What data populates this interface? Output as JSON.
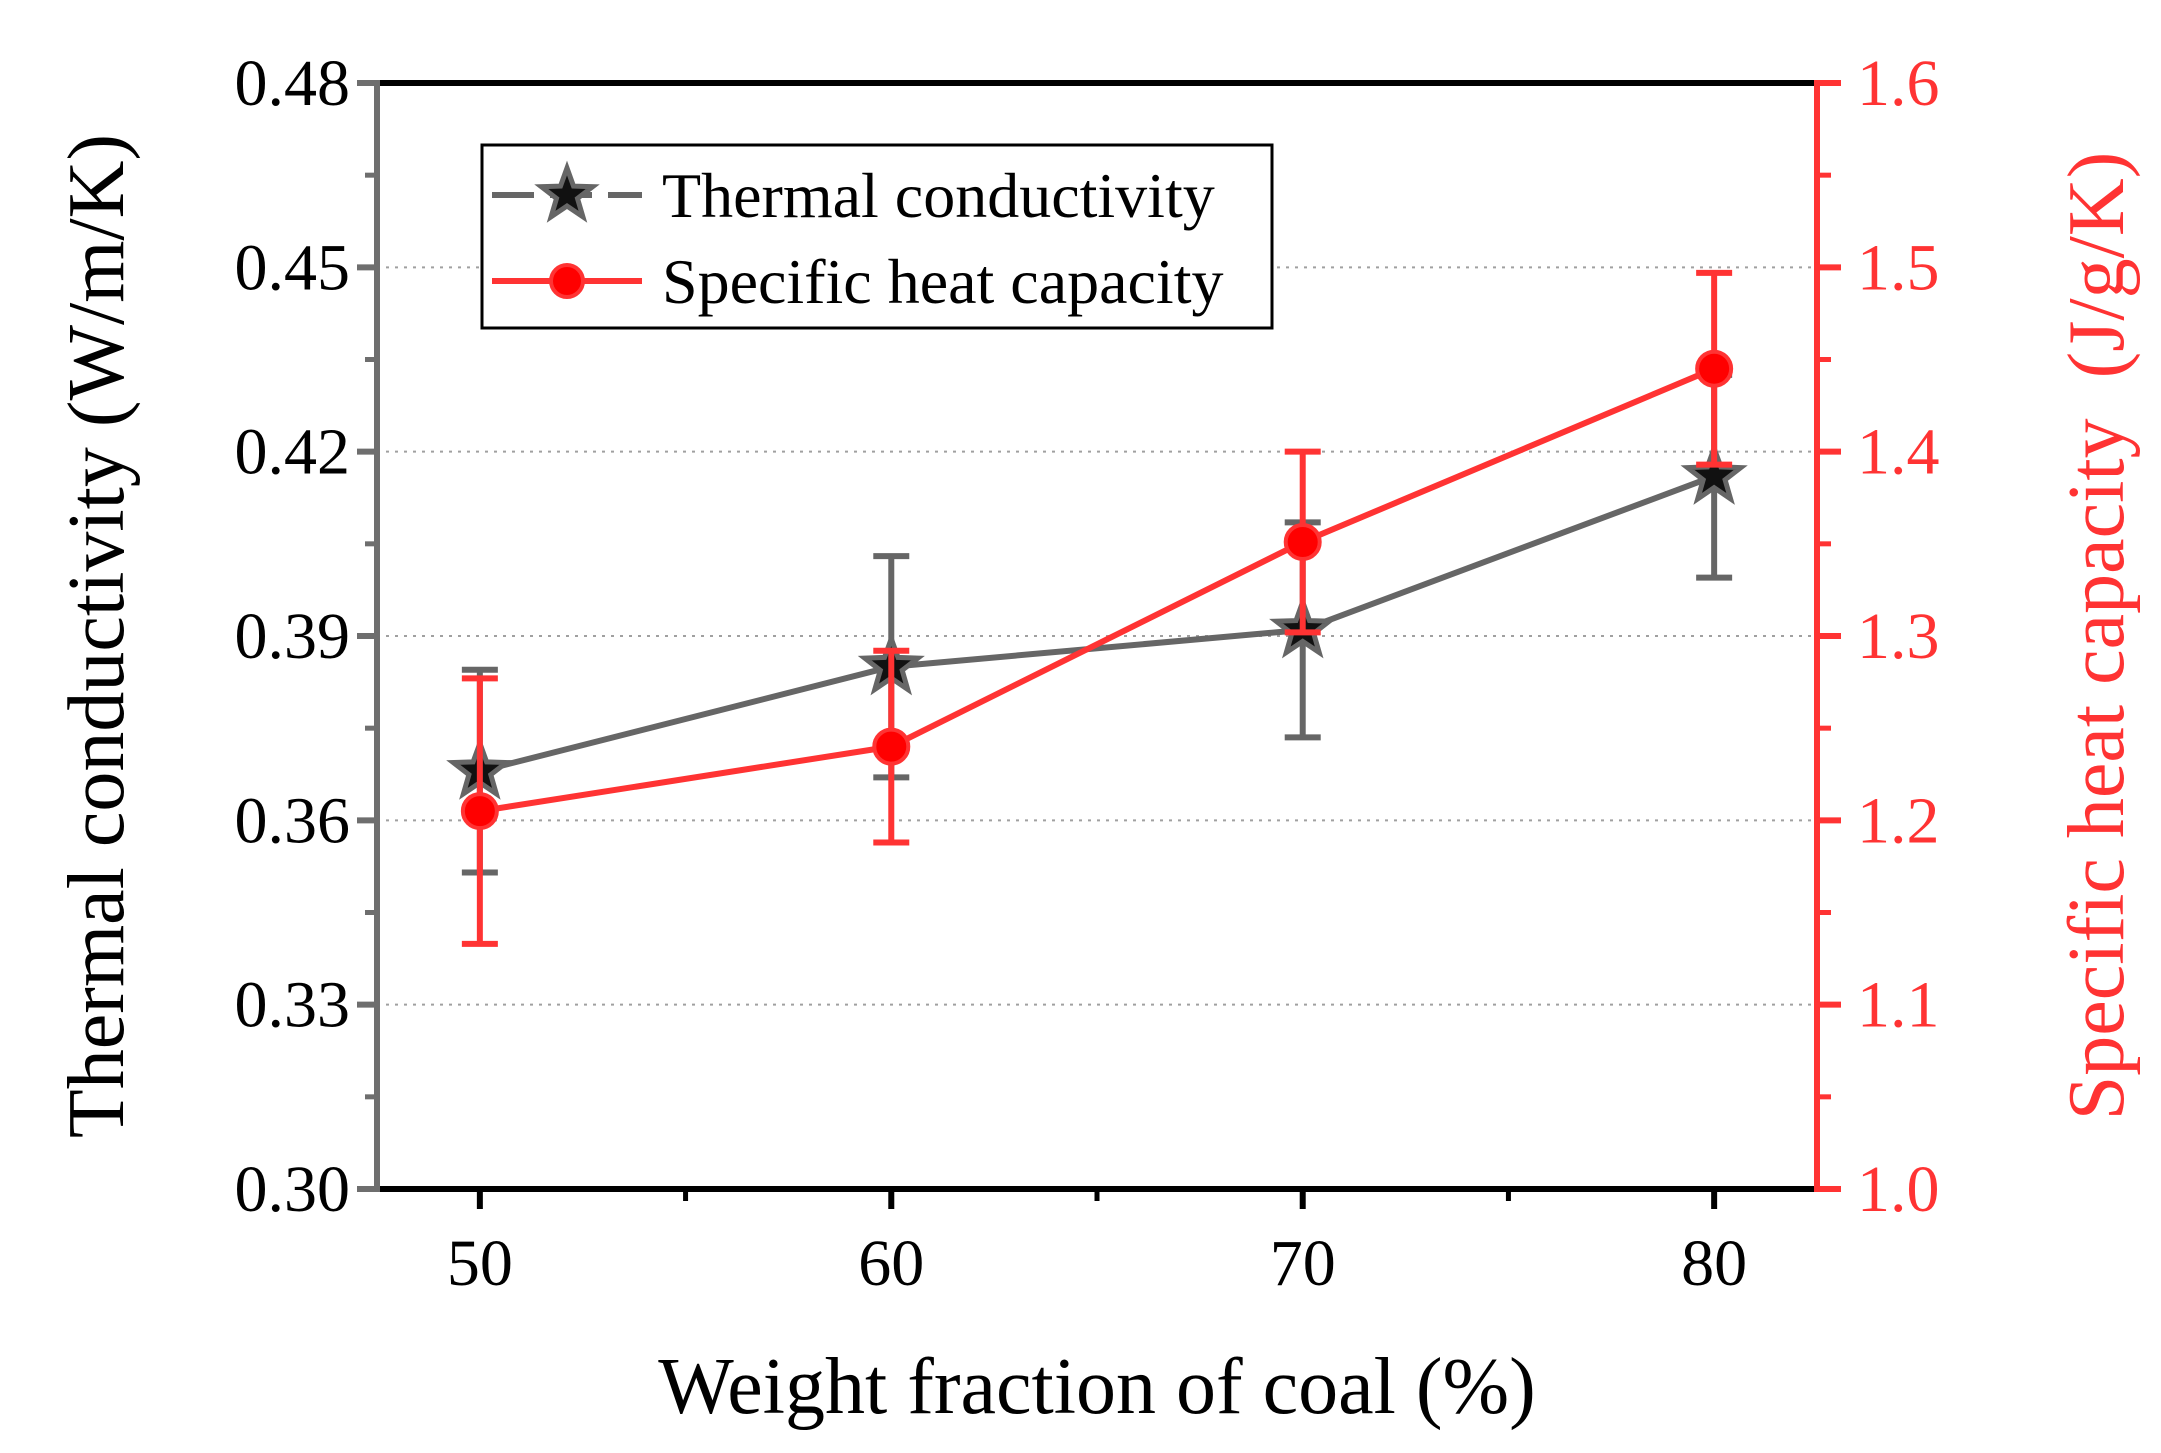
{
  "chart_data": {
    "type": "line",
    "xlabel": "Weight fraction of coal (%)",
    "ylabel_left": "Thermal conductivity (W/m/K)",
    "ylabel_right": "Specific heat capacity  (J/g/K)",
    "x": [
      50,
      60,
      70,
      80
    ],
    "x_ticks": [
      "50",
      "60",
      "70",
      "80"
    ],
    "xlim": [
      47.5,
      82.5
    ],
    "ylim_left": [
      0.3,
      0.48
    ],
    "y_ticks_left": [
      "0.30",
      "0.33",
      "0.36",
      "0.39",
      "0.42",
      "0.45",
      "0.48"
    ],
    "ylim_right": [
      1.0,
      1.6
    ],
    "y_ticks_right": [
      "1.0",
      "1.1",
      "1.2",
      "1.3",
      "1.4",
      "1.5",
      "1.6"
    ],
    "grid": "horizontal dotted",
    "legend_position": "top-left",
    "series": [
      {
        "name": "Thermal conductivity",
        "axis": "left",
        "marker": "star",
        "color": "#666666",
        "values": [
          0.368,
          0.385,
          0.391,
          0.416
        ],
        "error": [
          0.0165,
          0.018,
          0.0175,
          0.0165
        ]
      },
      {
        "name": "Specific heat capacity",
        "axis": "right",
        "marker": "circle",
        "color": "#ff3333",
        "values": [
          1.205,
          1.24,
          1.351,
          1.445
        ],
        "error": [
          0.072,
          0.052,
          0.049,
          0.052
        ]
      }
    ]
  }
}
